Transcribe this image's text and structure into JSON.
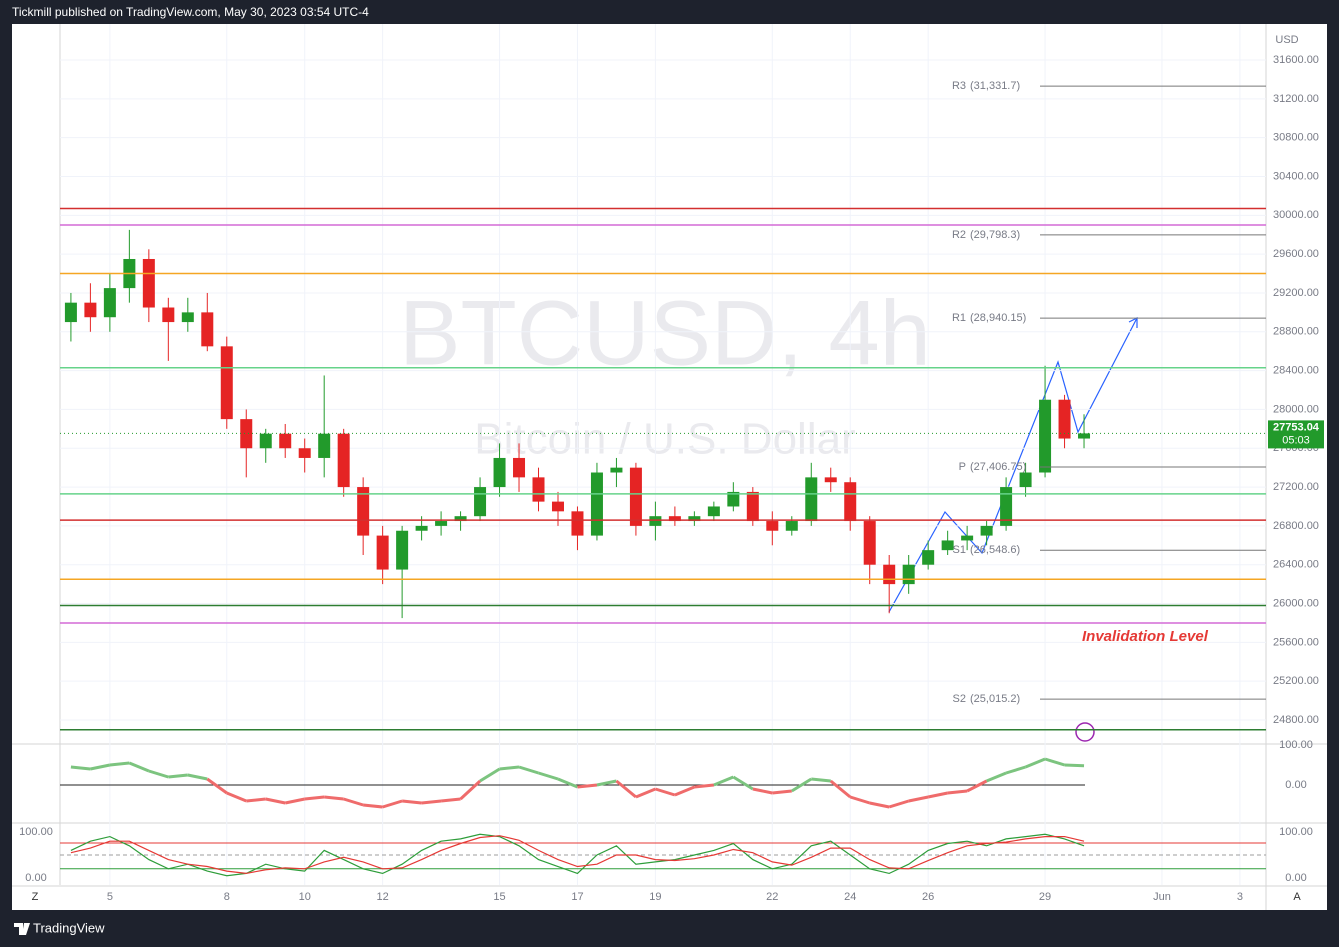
{
  "header": {
    "text": "Tickmill published on TradingView.com, May 30, 2023 03:54 UTC-4"
  },
  "footer": {
    "brand": "TradingView"
  },
  "buttons": {
    "left": "Z",
    "right": "A"
  },
  "chart_data": [
    {
      "type": "candlestick",
      "title": "BTCUSD, 4h",
      "subtitle": "Bitcoin / U.S. Dollar",
      "axis_unit": "USD",
      "up_color": "#229a2b",
      "down_color": "#e52424",
      "x": [
        4,
        4.5,
        5,
        5.5,
        6,
        6.5,
        7,
        7.5,
        8,
        8.5,
        9,
        9.5,
        10,
        10.5,
        11,
        11.5,
        12,
        12.5,
        13,
        13.5,
        14,
        14.5,
        15,
        15.5,
        16,
        16.5,
        17,
        17.5,
        18,
        18.5,
        19,
        19.5,
        20,
        20.5,
        21,
        21.5,
        22,
        22.5,
        23,
        23.5,
        24,
        24.5,
        25,
        25.5,
        26,
        26.5,
        27,
        27.5,
        28,
        28.5,
        29,
        29.5,
        30
      ],
      "ohlc": [
        [
          28900,
          29200,
          28700,
          29100
        ],
        [
          29100,
          29300,
          28800,
          28950
        ],
        [
          28950,
          29400,
          28800,
          29250
        ],
        [
          29250,
          29850,
          29100,
          29550
        ],
        [
          29550,
          29650,
          28900,
          29050
        ],
        [
          29050,
          29150,
          28500,
          28900
        ],
        [
          28900,
          29150,
          28800,
          29000
        ],
        [
          29000,
          29200,
          28600,
          28650
        ],
        [
          28650,
          28750,
          27800,
          27900
        ],
        [
          27900,
          28000,
          27300,
          27600
        ],
        [
          27600,
          27800,
          27450,
          27750
        ],
        [
          27750,
          27850,
          27500,
          27600
        ],
        [
          27600,
          27700,
          27350,
          27500
        ],
        [
          27500,
          28350,
          27300,
          27750
        ],
        [
          27750,
          27800,
          27100,
          27200
        ],
        [
          27200,
          27300,
          26500,
          26700
        ],
        [
          26700,
          26800,
          26200,
          26350
        ],
        [
          26350,
          26800,
          25850,
          26750
        ],
        [
          26750,
          26900,
          26650,
          26800
        ],
        [
          26800,
          26950,
          26700,
          26850
        ],
        [
          26850,
          26950,
          26750,
          26900
        ],
        [
          26900,
          27300,
          26850,
          27200
        ],
        [
          27200,
          27650,
          27100,
          27500
        ],
        [
          27500,
          27650,
          27150,
          27300
        ],
        [
          27300,
          27400,
          26950,
          27050
        ],
        [
          27050,
          27150,
          26800,
          26950
        ],
        [
          26950,
          27000,
          26550,
          26700
        ],
        [
          26700,
          27450,
          26650,
          27350
        ],
        [
          27350,
          27500,
          27200,
          27400
        ],
        [
          27400,
          27450,
          26700,
          26800
        ],
        [
          26800,
          27050,
          26650,
          26900
        ],
        [
          26900,
          27000,
          26800,
          26850
        ],
        [
          26850,
          26950,
          26800,
          26900
        ],
        [
          26900,
          27050,
          26850,
          27000
        ],
        [
          27000,
          27250,
          26950,
          27150
        ],
        [
          27150,
          27200,
          26800,
          26850
        ],
        [
          26850,
          26950,
          26600,
          26750
        ],
        [
          26750,
          26900,
          26700,
          26850
        ],
        [
          26850,
          27450,
          26800,
          27300
        ],
        [
          27300,
          27400,
          27150,
          27250
        ],
        [
          27250,
          27300,
          26750,
          26850
        ],
        [
          26850,
          26900,
          26200,
          26400
        ],
        [
          26400,
          26500,
          25900,
          26200
        ],
        [
          26200,
          26500,
          26100,
          26400
        ],
        [
          26400,
          26650,
          26350,
          26550
        ],
        [
          26550,
          26750,
          26500,
          26650
        ],
        [
          26650,
          26800,
          26550,
          26700
        ],
        [
          26700,
          26850,
          26600,
          26800
        ],
        [
          26800,
          27300,
          26750,
          27200
        ],
        [
          27200,
          27450,
          27100,
          27350
        ],
        [
          27350,
          28450,
          27300,
          28100
        ],
        [
          28100,
          28150,
          27600,
          27700
        ],
        [
          27700,
          27950,
          27600,
          27753.04
        ]
      ],
      "xlim": [
        3.72,
        34.67
      ],
      "xticks": [
        5,
        8,
        10,
        12,
        15,
        17,
        19,
        22,
        24,
        26,
        29,
        {
          "value": 32,
          "label": "Jun"
        },
        {
          "value": 34,
          "label": "3"
        }
      ],
      "ylim": [
        24563,
        31930
      ],
      "yticks": [
        {
          "value": 24800,
          "label": "24800.00"
        },
        {
          "value": 25200,
          "label": "25200.00"
        },
        {
          "value": 25600,
          "label": "25600.00"
        },
        {
          "value": 26000,
          "label": "26000.00"
        },
        {
          "value": 26400,
          "label": "26400.00"
        },
        {
          "value": 26800,
          "label": "26800.00"
        },
        {
          "value": 27200,
          "label": "27200.00"
        },
        {
          "value": 27600,
          "label": "27600.00"
        },
        {
          "value": 28000,
          "label": "28000.00"
        },
        {
          "value": 28400,
          "label": "28400.00"
        },
        {
          "value": 28800,
          "label": "28800.00"
        },
        {
          "value": 29200,
          "label": "29200.00"
        },
        {
          "value": 29600,
          "label": "29600.00"
        },
        {
          "value": 30000,
          "label": "30000.00"
        },
        {
          "value": 30400,
          "label": "30400.00"
        },
        {
          "value": 30800,
          "label": "30800.00"
        },
        {
          "value": 31200,
          "label": "31200.00"
        },
        {
          "value": 31600,
          "label": "31600.00"
        }
      ],
      "grid": true,
      "pivots": [
        {
          "name": "R3",
          "value": 31331.7,
          "value_label": "(31,331.7)"
        },
        {
          "name": "R2",
          "value": 29798.3,
          "value_label": "(29,798.3)"
        },
        {
          "name": "R1",
          "value": 28940.15,
          "value_label": "(28,940.15)"
        },
        {
          "name": "P",
          "value": 27406.75,
          "value_label": "(27,406.75)"
        },
        {
          "name": "S1",
          "value": 26548.6,
          "value_label": "(26,548.6)"
        },
        {
          "name": "S2",
          "value": 25015.2,
          "value_label": "(25,015.2)"
        }
      ],
      "levels": [
        {
          "value": 30070,
          "color": "#d32f2f"
        },
        {
          "value": 29900,
          "color": "#d36ad6"
        },
        {
          "value": 29400,
          "color": "#f5a623"
        },
        {
          "value": 28430,
          "color": "#66d38a"
        },
        {
          "value": 27130,
          "color": "#66d38a"
        },
        {
          "value": 26860,
          "color": "#d32f2f"
        },
        {
          "value": 26250,
          "color": "#f5a623"
        },
        {
          "value": 25980,
          "color": "#2e7d32"
        },
        {
          "value": 25800,
          "color": "#d36ad6"
        },
        {
          "value": 24700,
          "color": "#2e7d32"
        }
      ],
      "last_price": {
        "value": 27753.04,
        "countdown": "05:03",
        "color": "#229a2b"
      },
      "annotation": {
        "text": "Invalidation Level",
        "color": "#e53935"
      }
    },
    {
      "type": "line",
      "x": [
        4,
        4.5,
        5,
        5.5,
        6,
        6.5,
        7,
        7.5,
        8,
        8.5,
        9,
        9.5,
        10,
        10.5,
        11,
        11.5,
        12,
        12.5,
        13,
        13.5,
        14,
        14.5,
        15,
        15.5,
        16,
        16.5,
        17,
        17.5,
        18,
        18.5,
        19,
        19.5,
        20,
        20.5,
        21,
        21.5,
        22,
        22.5,
        23,
        23.5,
        24,
        24.5,
        25,
        25.5,
        26,
        26.5,
        27,
        27.5,
        28,
        28.5,
        29,
        29.5,
        30
      ],
      "series": [
        {
          "color": "#7cc47f",
          "negative_color": "#ef6b6b",
          "values": [
            45,
            40,
            50,
            55,
            35,
            20,
            25,
            15,
            -20,
            -40,
            -35,
            -45,
            -35,
            -30,
            -35,
            -50,
            -55,
            -40,
            -45,
            -40,
            -35,
            10,
            40,
            45,
            30,
            15,
            -5,
            0,
            10,
            -30,
            -10,
            -25,
            -5,
            0,
            20,
            -10,
            -20,
            -15,
            15,
            10,
            -30,
            -45,
            -55,
            -40,
            -30,
            -20,
            -15,
            10,
            30,
            45,
            65,
            50,
            48
          ]
        }
      ],
      "xlim": [
        3.72,
        34.67
      ],
      "ylim": [
        -92.5,
        100
      ],
      "yticks": [
        {
          "value": 100,
          "label": "100.00"
        },
        {
          "value": 0,
          "label": "0.00"
        }
      ]
    },
    {
      "type": "line",
      "x": [
        4,
        4.5,
        5,
        5.5,
        6,
        6.5,
        7,
        7.5,
        8,
        8.5,
        9,
        9.5,
        10,
        10.5,
        11,
        11.5,
        12,
        12.5,
        13,
        13.5,
        14,
        14.5,
        15,
        15.5,
        16,
        16.5,
        17,
        17.5,
        18,
        18.5,
        19,
        19.5,
        20,
        20.5,
        21,
        21.5,
        22,
        22.5,
        23,
        23.5,
        24,
        24.5,
        25,
        25.5,
        26,
        26.5,
        27,
        27.5,
        28,
        28.5,
        29,
        29.5,
        30
      ],
      "series": [
        {
          "color": "#2e9d3a",
          "values": [
            60,
            80,
            90,
            70,
            40,
            20,
            30,
            15,
            5,
            10,
            30,
            20,
            15,
            60,
            40,
            20,
            10,
            30,
            60,
            80,
            85,
            95,
            90,
            70,
            40,
            25,
            10,
            50,
            70,
            30,
            35,
            40,
            50,
            60,
            75,
            40,
            20,
            30,
            70,
            80,
            50,
            20,
            10,
            30,
            60,
            75,
            80,
            70,
            85,
            90,
            95,
            85,
            70
          ]
        },
        {
          "color": "#e53935",
          "values": [
            55,
            65,
            80,
            80,
            60,
            40,
            30,
            25,
            15,
            10,
            18,
            22,
            20,
            35,
            45,
            35,
            20,
            22,
            40,
            60,
            75,
            88,
            92,
            82,
            60,
            40,
            25,
            30,
            50,
            50,
            40,
            38,
            42,
            50,
            62,
            55,
            35,
            28,
            45,
            65,
            65,
            40,
            22,
            20,
            38,
            55,
            70,
            75,
            78,
            85,
            90,
            90,
            80
          ]
        }
      ],
      "levels": [
        {
          "value": 76,
          "color": "#e53935"
        },
        {
          "value": 50,
          "color": "#9e9e9e"
        },
        {
          "value": 20,
          "color": "#2e9d3a"
        }
      ],
      "xlim": [
        3.72,
        34.67
      ],
      "ylim": [
        -15.2,
        115.2
      ],
      "yticks": [
        {
          "value": 100,
          "label": "100.00"
        },
        {
          "value": 0,
          "label": "0.00"
        }
      ]
    }
  ]
}
